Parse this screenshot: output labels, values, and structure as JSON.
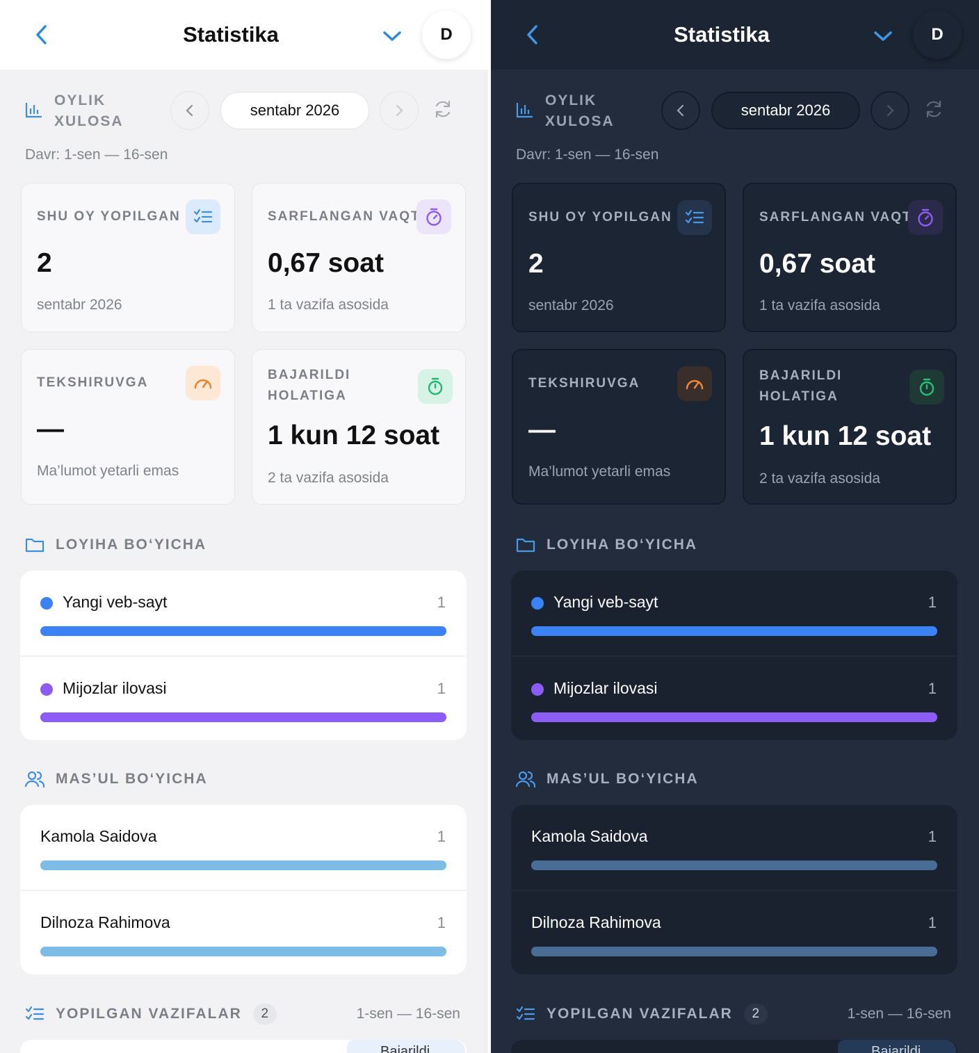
{
  "header": {
    "title": "Statistika",
    "avatar": "D"
  },
  "summary": {
    "label": "OYLIK XULOSA",
    "month": "sentabr 2026",
    "period": "Davr: 1-sen — 16-sen"
  },
  "cards": {
    "closed": {
      "label": "SHU OY YOPILGAN",
      "value": "2",
      "sub": "sentabr 2026",
      "icon": "checklist-icon"
    },
    "spent": {
      "label": "SARFLANGAN VAQT",
      "value": "0,67 soat",
      "sub": "1 ta vazifa asosida",
      "icon": "stopwatch-icon"
    },
    "review": {
      "label": "TEKSHIRUVGA",
      "value": "—",
      "sub": "Ma’lumot yetarli emas",
      "icon": "gauge-icon"
    },
    "done": {
      "label": "BAJARILDI HOLATIGA",
      "value": "1 kun 12 soat",
      "sub": "2 ta vazifa asosida",
      "icon": "timer-icon"
    }
  },
  "projects": {
    "title": "LOYIHA BO‘YICHA",
    "items": [
      {
        "name": "Yangi veb-sayt",
        "count": "1",
        "share": 1.0,
        "color": "#3b82f6"
      },
      {
        "name": "Mijozlar ilovasi",
        "count": "1",
        "share": 1.0,
        "color": "#8b5cf6"
      }
    ]
  },
  "assignees": {
    "title": "MAS’UL BO‘YICHA",
    "items": [
      {
        "name": "Kamola Saidova",
        "count": "1",
        "share": 1.0
      },
      {
        "name": "Dilnoza Rahimova",
        "count": "1",
        "share": 1.0
      }
    ]
  },
  "completed": {
    "title": "YOPILGAN VAZIFALAR",
    "count": "2",
    "range": "1-sen — 16-sen",
    "first_status": "Bajarildi"
  },
  "colors": {
    "accent": "#3b82f6",
    "purple": "#8b5cf6",
    "orange": "#f0883e",
    "green": "#22c07a",
    "assignee_bar_light": "#7cbce6",
    "assignee_bar_dark": "#4a6d96"
  }
}
